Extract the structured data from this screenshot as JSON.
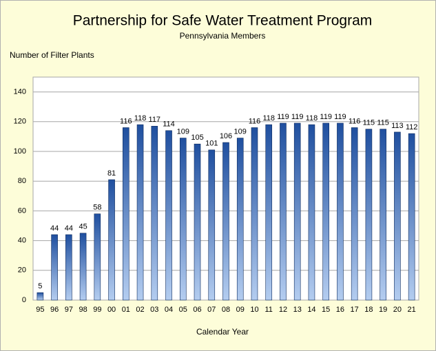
{
  "chart_data": {
    "type": "bar",
    "title": "Partnership for Safe Water Treatment Program",
    "subtitle": "Pennsylvania Members",
    "y_label": "Number of Filter Plants",
    "x_label": "Calendar Year",
    "categories": [
      "95",
      "96",
      "97",
      "98",
      "99",
      "00",
      "01",
      "02",
      "03",
      "04",
      "05",
      "06",
      "07",
      "08",
      "09",
      "10",
      "11",
      "12",
      "13",
      "14",
      "15",
      "16",
      "17",
      "18",
      "19",
      "20",
      "21"
    ],
    "values": [
      5,
      44,
      44,
      45,
      58,
      81,
      116,
      118,
      117,
      114,
      109,
      105,
      101,
      106,
      109,
      116,
      118,
      119,
      119,
      118,
      119,
      119,
      116,
      115,
      115,
      113,
      112
    ],
    "color": "#1f4f9f",
    "ylim": [
      0,
      150
    ],
    "yticks": [
      0,
      20,
      40,
      60,
      80,
      100,
      120,
      140
    ],
    "grid": true
  }
}
